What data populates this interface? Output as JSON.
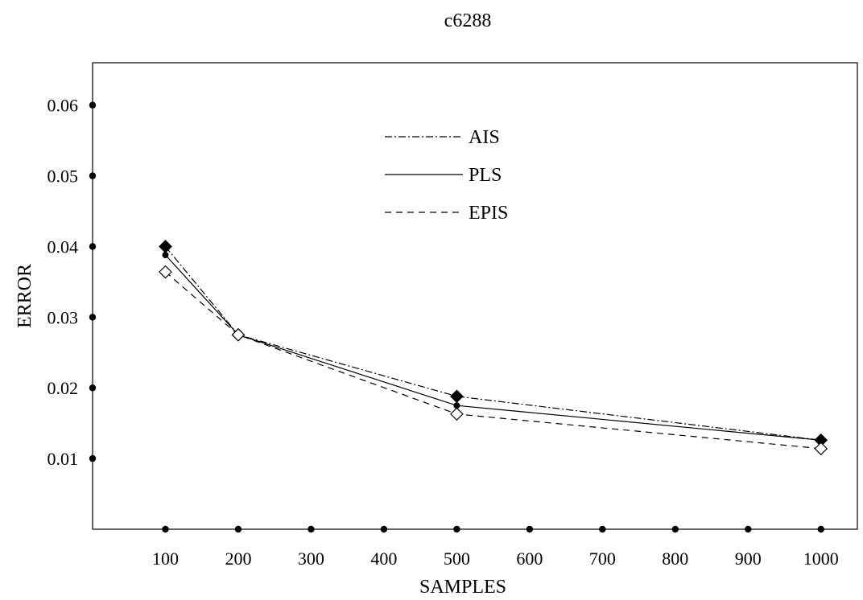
{
  "chart_data": {
    "type": "line",
    "title": "c6288",
    "xlabel": "SAMPLES",
    "ylabel": "ERROR",
    "x_ticks": [
      100,
      200,
      300,
      400,
      500,
      600,
      700,
      800,
      900,
      1000
    ],
    "y_ticks": [
      0.01,
      0.02,
      0.03,
      0.04,
      0.05,
      0.06
    ],
    "y_tick_labels": [
      "0.01",
      "0.02",
      "0.03",
      "0.04",
      "0.05",
      "0.06"
    ],
    "xlim": [
      0,
      1050
    ],
    "ylim": [
      0,
      0.066
    ],
    "grid": false,
    "legend_position": "top-center",
    "series": [
      {
        "name": "AIS",
        "line_style": "dashdot",
        "marker": "filled-diamond",
        "x": [
          100,
          200,
          500,
          1000
        ],
        "y": [
          0.04,
          0.0275,
          0.0188,
          0.0126
        ]
      },
      {
        "name": "PLS",
        "line_style": "solid",
        "marker": "filled-dot",
        "x": [
          100,
          200,
          500,
          1000
        ],
        "y": [
          0.0388,
          0.0275,
          0.0175,
          0.0126
        ]
      },
      {
        "name": "EPIS",
        "line_style": "dashed",
        "marker": "open-diamond",
        "x": [
          100,
          200,
          500,
          1000
        ],
        "y": [
          0.0364,
          0.0275,
          0.0163,
          0.0114
        ]
      }
    ],
    "colors": {
      "line": "#000000",
      "background": "#ffffff"
    }
  }
}
